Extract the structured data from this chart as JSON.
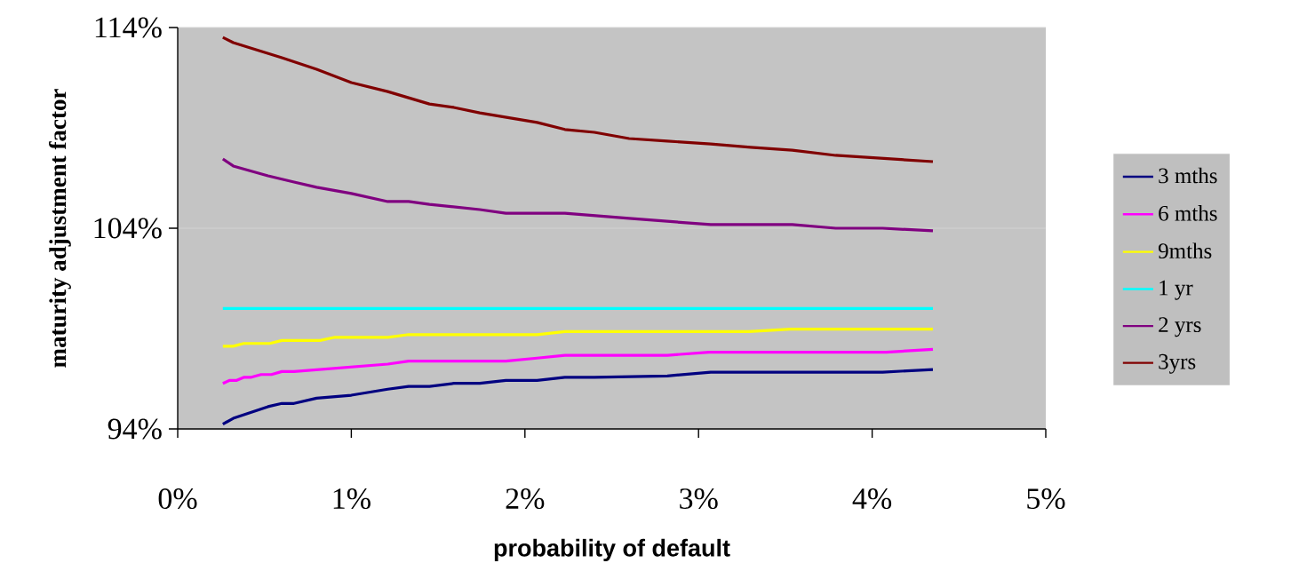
{
  "chart_data": {
    "type": "line",
    "xlabel": "probability of default",
    "ylabel": "maturity adjustment factor",
    "xlim": [
      0,
      5
    ],
    "ylim": [
      94,
      114
    ],
    "xticks": [
      {
        "value": 0,
        "label": "0%"
      },
      {
        "value": 1,
        "label": "1%"
      },
      {
        "value": 2,
        "label": "2%"
      },
      {
        "value": 3,
        "label": "3%"
      },
      {
        "value": 4,
        "label": "4%"
      },
      {
        "value": 5,
        "label": "5%"
      }
    ],
    "yticks": [
      {
        "value": 94,
        "label": "94%"
      },
      {
        "value": 104,
        "label": "104%"
      },
      {
        "value": 114,
        "label": "114%"
      }
    ],
    "grid": "y",
    "legend": "right",
    "marker": "none",
    "line_style": "solid",
    "series": [
      {
        "name": "3 mths",
        "color": "#000080",
        "x": [
          0.26,
          0.32,
          0.52,
          0.6,
          0.67,
          0.8,
          1.0,
          1.21,
          1.33,
          1.45,
          1.59,
          1.74,
          1.89,
          2.07,
          2.23,
          2.4,
          2.82,
          3.07,
          4.06,
          4.35
        ],
        "values": [
          94.24,
          94.53,
          95.11,
          95.27,
          95.27,
          95.53,
          95.68,
          95.98,
          96.12,
          96.12,
          96.27,
          96.27,
          96.42,
          96.42,
          96.57,
          96.57,
          96.64,
          96.83,
          96.83,
          96.96
        ]
      },
      {
        "name": "6 mths",
        "color": "#ff00ff",
        "x": [
          0.26,
          0.3,
          0.34,
          0.38,
          0.42,
          0.48,
          0.54,
          0.6,
          0.67,
          1.21,
          1.33,
          1.89,
          2.07,
          2.23,
          2.82,
          3.06,
          4.08,
          4.35
        ],
        "values": [
          96.27,
          96.42,
          96.42,
          96.57,
          96.57,
          96.71,
          96.71,
          96.86,
          96.86,
          97.23,
          97.38,
          97.38,
          97.53,
          97.67,
          97.67,
          97.82,
          97.82,
          97.97
        ]
      },
      {
        "name": "9mths",
        "color": "#ffff00",
        "x": [
          0.26,
          0.32,
          0.38,
          0.53,
          0.6,
          0.82,
          0.9,
          1.21,
          1.33,
          2.07,
          2.23,
          3.29,
          3.53,
          4.35
        ],
        "values": [
          98.12,
          98.12,
          98.26,
          98.26,
          98.41,
          98.41,
          98.56,
          98.56,
          98.7,
          98.7,
          98.85,
          98.85,
          98.97,
          98.97
        ]
      },
      {
        "name": "1 yr",
        "color": "#00ffff",
        "x": [
          0.26,
          4.35
        ],
        "values": [
          100.0,
          100.0
        ]
      },
      {
        "name": "2 yrs",
        "color": "#800080",
        "x": [
          0.26,
          0.32,
          0.52,
          0.67,
          0.8,
          1.0,
          1.21,
          1.33,
          1.45,
          1.74,
          1.89,
          2.23,
          2.6,
          3.07,
          3.54,
          3.79,
          4.06,
          4.35
        ],
        "values": [
          107.45,
          107.1,
          106.61,
          106.3,
          106.04,
          105.73,
          105.33,
          105.33,
          105.19,
          104.93,
          104.75,
          104.75,
          104.49,
          104.18,
          104.18,
          104.0,
          104.0,
          103.87
        ]
      },
      {
        "name": "3yrs",
        "color": "#800000",
        "x": [
          0.26,
          0.32,
          0.6,
          0.8,
          1.0,
          1.21,
          1.45,
          1.59,
          1.74,
          2.07,
          2.23,
          2.4,
          2.6,
          2.82,
          3.07,
          3.3,
          3.54,
          3.79,
          4.35
        ],
        "values": [
          113.51,
          113.25,
          112.5,
          111.92,
          111.26,
          110.81,
          110.19,
          110.02,
          109.75,
          109.27,
          108.92,
          108.78,
          108.47,
          108.34,
          108.2,
          108.03,
          107.89,
          107.63,
          107.32
        ]
      }
    ]
  }
}
